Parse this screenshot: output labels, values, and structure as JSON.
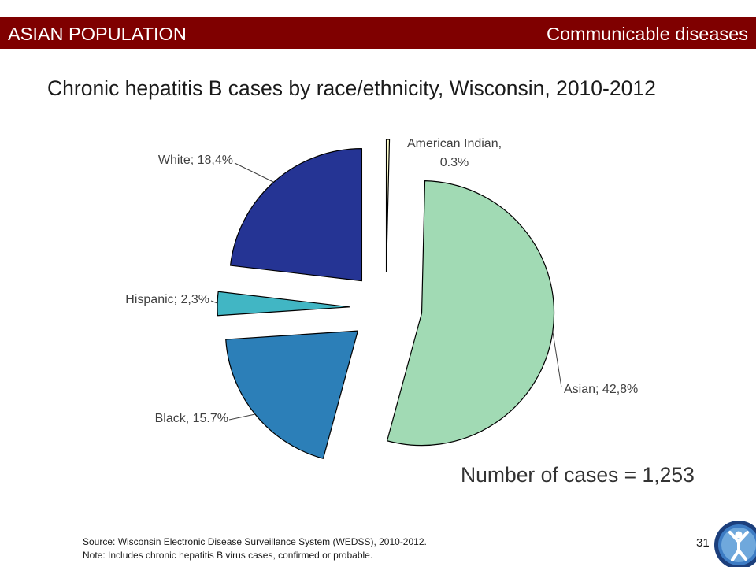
{
  "header": {
    "left_label": "ASIAN POPULATION",
    "right_label": "Communicable diseases",
    "background_color": "#7F0000"
  },
  "chart_data": {
    "type": "pie",
    "title": "Chronic hepatitis B cases by race/ethnicity, Wisconsin, 2010-2012",
    "exploded": true,
    "slices": [
      {
        "label": "American Indian,",
        "label_line2": "0.3%",
        "value": 0.3,
        "color": "#FFFFCC"
      },
      {
        "label": "Asian; 42,8%",
        "value": 42.8,
        "color": "#A1DAB4"
      },
      {
        "label": "Black, 15.7%",
        "value": 15.7,
        "color": "#2C7FB8"
      },
      {
        "label": "Hispanic; 2,3%",
        "value": 2.3,
        "color": "#41B6C4"
      },
      {
        "label": "White; 18,4%",
        "value": 18.4,
        "color": "#253494"
      }
    ],
    "annotation": "Number of cases = 1,253"
  },
  "footer": {
    "source": "Source: Wisconsin Electronic Disease Surveillance System (WEDSS), 2010-2012.",
    "note": "Note: Includes chronic hepatitis B virus cases, confirmed or probable.",
    "page_number": "31"
  },
  "logo": {
    "icon": "person-figure-icon"
  }
}
